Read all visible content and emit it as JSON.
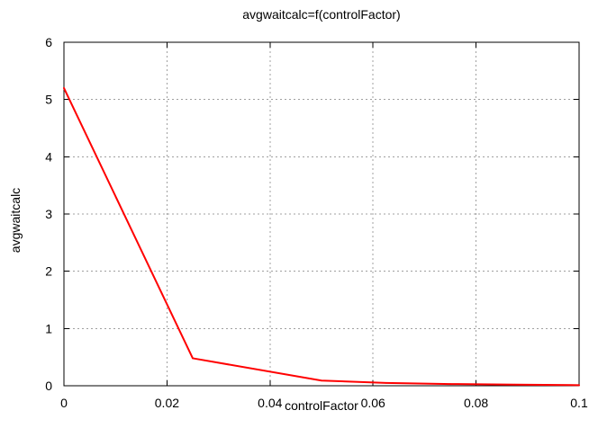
{
  "chart_data": {
    "type": "line",
    "title": "avgwaitcalc=f(controlFactor)",
    "xlabel": "controlFactor",
    "ylabel": "avgwaitcalc",
    "xlim": [
      0,
      0.1
    ],
    "ylim": [
      0,
      6
    ],
    "x_ticks": [
      0,
      0.02,
      0.04,
      0.06,
      0.08,
      0.1
    ],
    "x_tick_labels": [
      "0",
      "0.02",
      "0.04",
      "0.06",
      "0.08",
      "0.1"
    ],
    "y_ticks": [
      0,
      1,
      2,
      3,
      4,
      5,
      6
    ],
    "y_tick_labels": [
      "0",
      "1",
      "2",
      "3",
      "4",
      "5",
      "6"
    ],
    "grid": true,
    "series": [
      {
        "color": "#ff0000",
        "x": [
          0,
          0.025,
          0.05,
          0.0625,
          0.075,
          0.0875,
          0.1
        ],
        "y": [
          5.2,
          0.48,
          0.09,
          0.05,
          0.03,
          0.02,
          0.01
        ]
      }
    ]
  }
}
